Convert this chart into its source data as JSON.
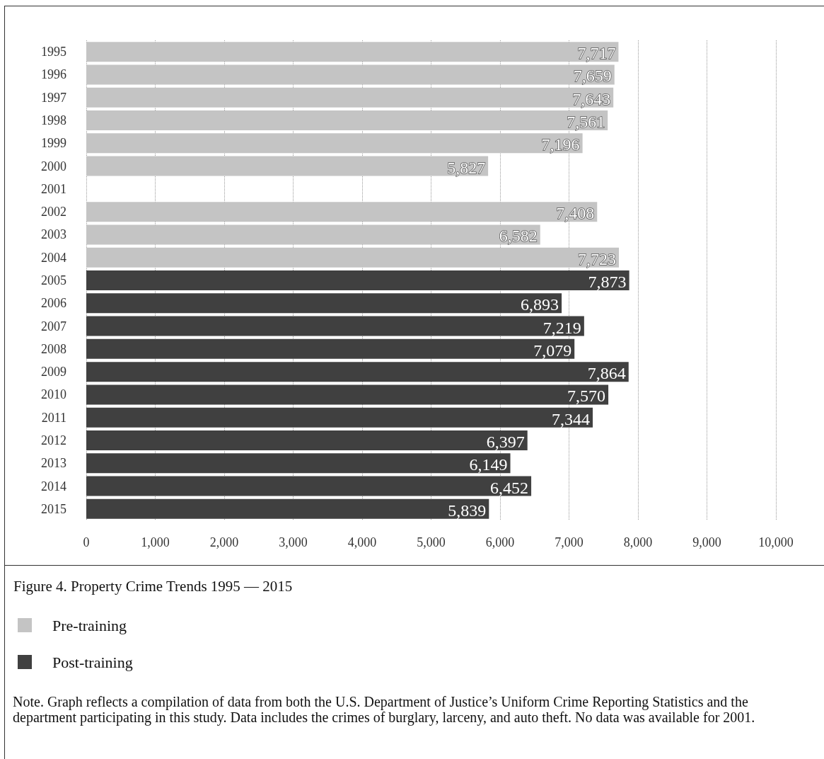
{
  "chart_data": {
    "type": "bar",
    "orientation": "horizontal",
    "title": "Figure 4. Property Crime Trends 1995 — 2015",
    "categories": [
      "1995",
      "1996",
      "1997",
      "1998",
      "1999",
      "2000",
      "2001",
      "2002",
      "2003",
      "2004",
      "2005",
      "2006",
      "2007",
      "2008",
      "2009",
      "2010",
      "2011",
      "2012",
      "2013",
      "2014",
      "2015"
    ],
    "series": [
      {
        "name": "Pre-training",
        "color": "#c4c4c4",
        "values": [
          7717,
          7659,
          7643,
          7561,
          7196,
          5827,
          null,
          7408,
          6582,
          7723,
          null,
          null,
          null,
          null,
          null,
          null,
          null,
          null,
          null,
          null,
          null
        ],
        "value_labels": [
          "7,717",
          "7,659",
          "7,643",
          "7,561",
          "7,196",
          "5,827",
          null,
          "7,408",
          "6,582",
          "7,723",
          null,
          null,
          null,
          null,
          null,
          null,
          null,
          null,
          null,
          null,
          null
        ]
      },
      {
        "name": "Post-training",
        "color": "#404040",
        "values": [
          null,
          null,
          null,
          null,
          null,
          null,
          null,
          null,
          null,
          null,
          7873,
          6893,
          7219,
          7079,
          7864,
          7570,
          7344,
          6397,
          6149,
          6452,
          5839
        ],
        "value_labels": [
          null,
          null,
          null,
          null,
          null,
          null,
          null,
          null,
          null,
          null,
          "7,873",
          "6,893",
          "7,219",
          "7,079",
          "7,864",
          "7,570",
          "7,344",
          "6,397",
          "6,149",
          "6,452",
          "5,839"
        ]
      }
    ],
    "xlim": [
      0,
      10000
    ],
    "xticks": [
      0,
      {
        "value": 1000,
        "label": "1,000"
      },
      {
        "value": 2000,
        "label": "2,000"
      },
      {
        "value": 3000,
        "label": "3,000"
      },
      {
        "value": 4000,
        "label": "4,000"
      },
      {
        "value": 5000,
        "label": "5,000"
      },
      {
        "value": 6000,
        "label": "6,000"
      },
      {
        "value": 7000,
        "label": "7,000"
      },
      {
        "value": 8000,
        "label": "8,000"
      },
      {
        "value": 9000,
        "label": "9,000"
      },
      {
        "value": 10000,
        "label": "10,000"
      }
    ],
    "grid": "x",
    "legend": "bottom left",
    "annotations": [
      "Note. Graph reflects a compilation of data from both the U.S. Department of Justice’s Uniform Crime Reporting Statistics and the department participating in this study. Data includes the crimes of burglary, larceny, and auto theft. No data was available for 2001."
    ]
  }
}
